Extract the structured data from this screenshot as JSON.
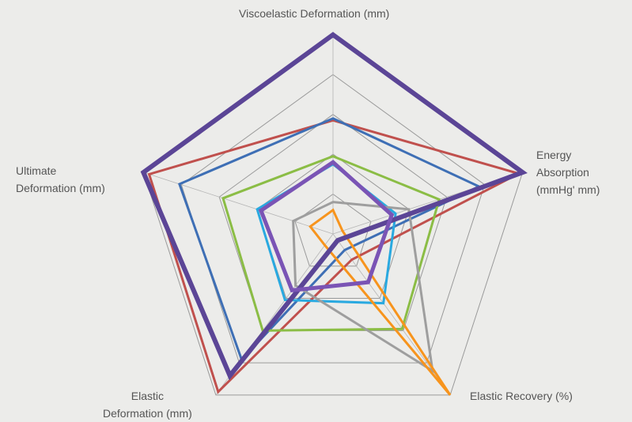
{
  "chart_data": {
    "type": "radar",
    "axes": [
      "Viscoelastic Deformation (mm)",
      "Energy\nAbsorption\n(mmHg' mm)",
      "Elastic Recovery (%)",
      "Elastic\nDeformation (mm)",
      "Ultimate\nDeformation (mm)"
    ],
    "rings": 5,
    "range": [
      0,
      1
    ],
    "series": [
      {
        "color": "#c0504d",
        "values": [
          0.57,
          0.98,
          0.16,
          0.98,
          0.97
        ],
        "width": 3
      },
      {
        "color": "#3e6fb5",
        "values": [
          0.58,
          0.77,
          0.1,
          0.78,
          0.81
        ],
        "width": 3
      },
      {
        "color": "#8bbd45",
        "values": [
          0.39,
          0.56,
          0.59,
          0.6,
          0.58
        ],
        "width": 3
      },
      {
        "color": "#29a9e0",
        "values": [
          0.35,
          0.33,
          0.43,
          0.41,
          0.4
        ],
        "width": 3
      },
      {
        "color": "#9e9e9e",
        "values": [
          0.16,
          0.4,
          0.85,
          0.32,
          0.21
        ],
        "width": 3
      },
      {
        "color": "#f7941d",
        "values": [
          0.12,
          0.05,
          1.0,
          0.07,
          0.12
        ],
        "width": 3
      },
      {
        "color": "#5b4596",
        "values": [
          1.0,
          1.0,
          0.04,
          0.88,
          1.0
        ],
        "width": 6
      },
      {
        "color": "#7a54b5",
        "values": [
          0.36,
          0.31,
          0.3,
          0.35,
          0.38
        ],
        "width": 5
      }
    ]
  }
}
